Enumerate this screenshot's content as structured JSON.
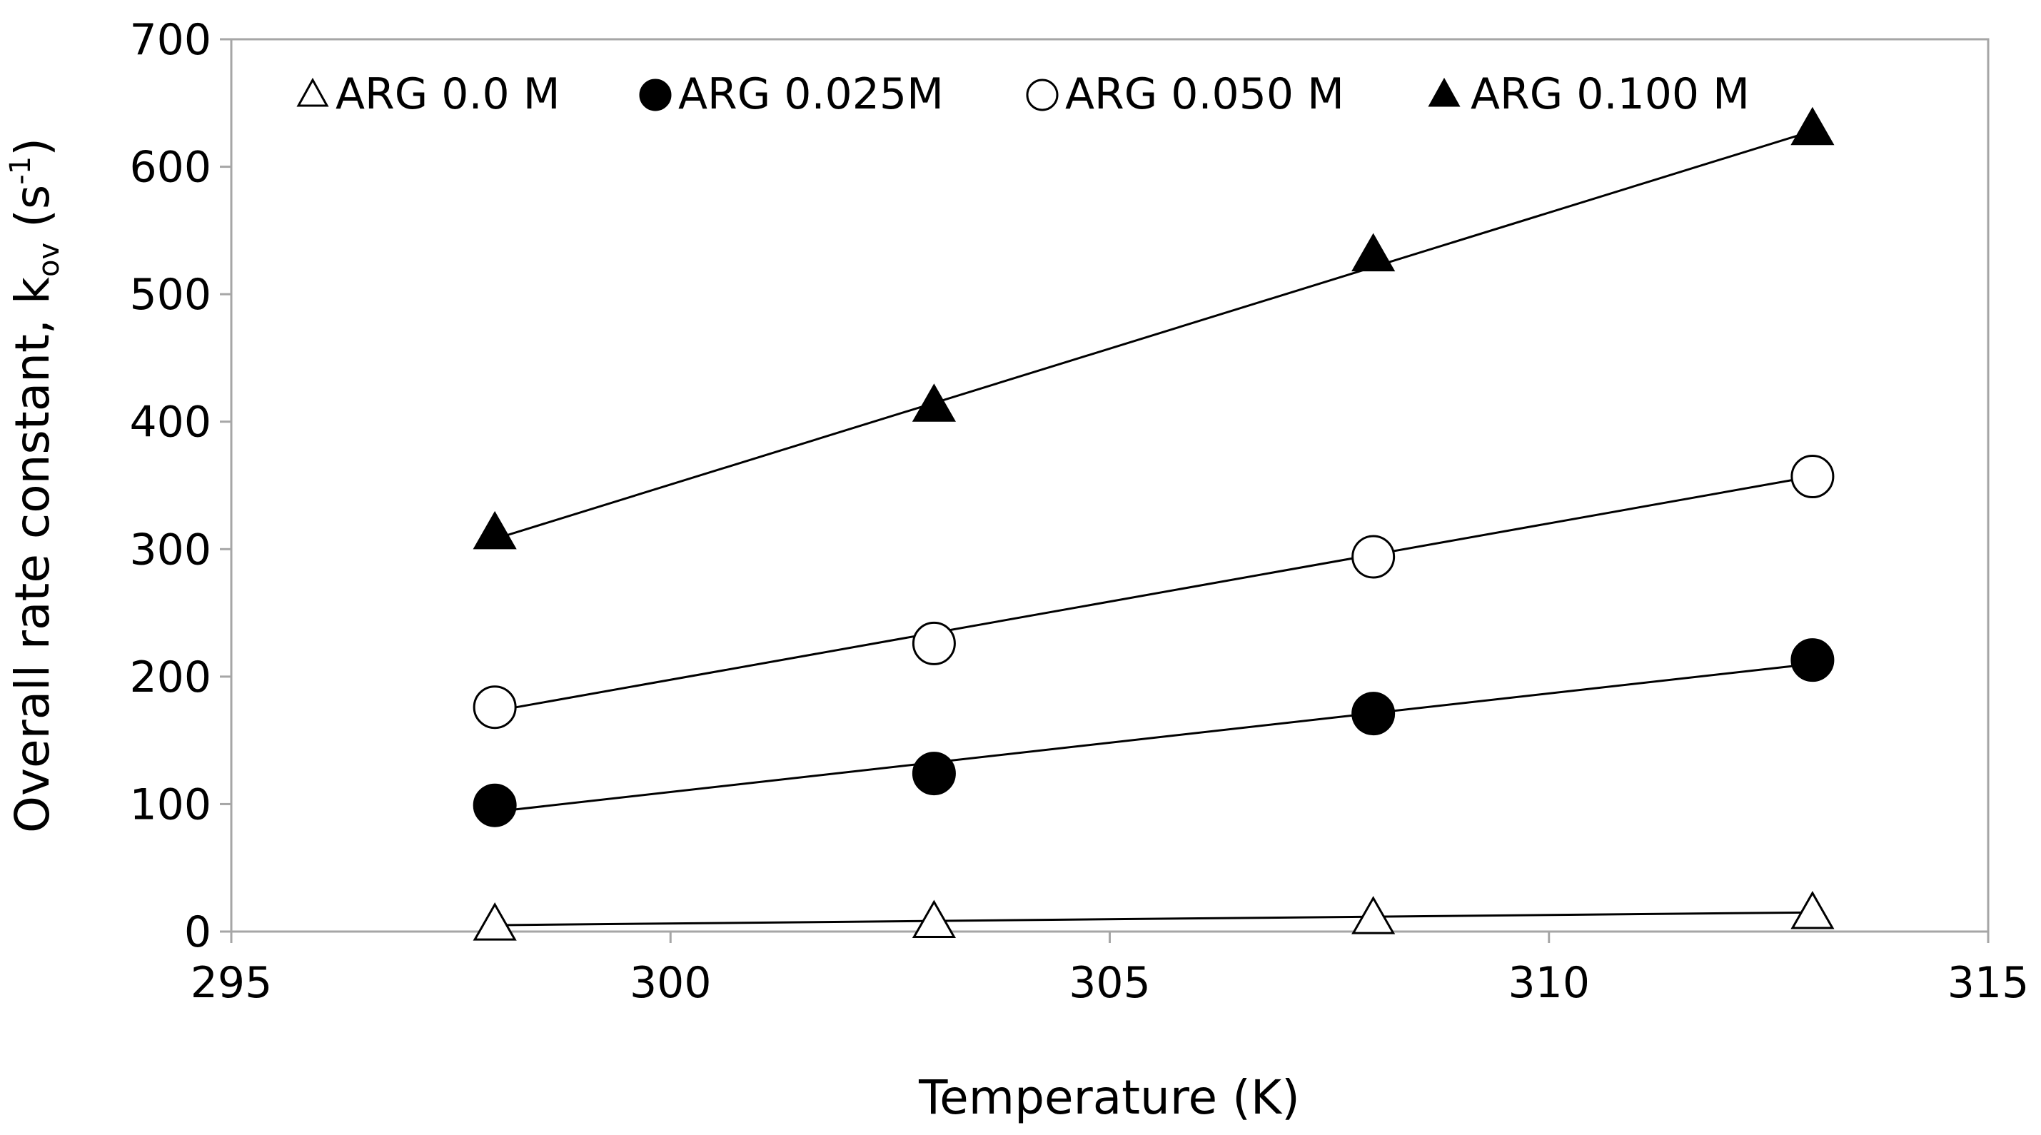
{
  "chart_data": {
    "type": "scatter",
    "title": "",
    "xlabel": "Temperature (K)",
    "ylabel": {
      "prefix": "Overall rate constant, k",
      "subscript": "ov",
      "unit_open": " (s",
      "superscript": "-1",
      "unit_close": ")"
    },
    "xlim": [
      295,
      315
    ],
    "ylim": [
      0,
      700
    ],
    "xticks": [
      "295",
      "300",
      "305",
      "310",
      "315"
    ],
    "yticks": [
      "0",
      "100",
      "200",
      "300",
      "400",
      "500",
      "600",
      "700"
    ],
    "grid": false,
    "legend_position": "top",
    "series": [
      {
        "name": "ARG 0.0 M",
        "marker": "triangle-open",
        "x": [
          298,
          303,
          308,
          313
        ],
        "y": [
          5,
          7,
          10,
          14
        ],
        "fit": [
          [
            298,
            5
          ],
          [
            313,
            15
          ]
        ]
      },
      {
        "name": "ARG 0.025M",
        "marker": "circle-filled",
        "x": [
          298,
          303,
          308,
          313
        ],
        "y": [
          99,
          124,
          171,
          213
        ],
        "fit": [
          [
            298,
            94
          ],
          [
            313,
            210
          ]
        ]
      },
      {
        "name": "ARG 0.050 M",
        "marker": "circle-open",
        "x": [
          298,
          303,
          308,
          313
        ],
        "y": [
          176,
          226,
          294,
          357
        ],
        "fit": [
          [
            298,
            173
          ],
          [
            313,
            357
          ]
        ]
      },
      {
        "name": "ARG 0.100 M",
        "marker": "triangle-filled",
        "x": [
          298,
          303,
          308,
          313
        ],
        "y": [
          312,
          412,
          530,
          629
        ],
        "fit": [
          [
            298,
            308
          ],
          [
            313,
            628
          ]
        ]
      }
    ]
  }
}
